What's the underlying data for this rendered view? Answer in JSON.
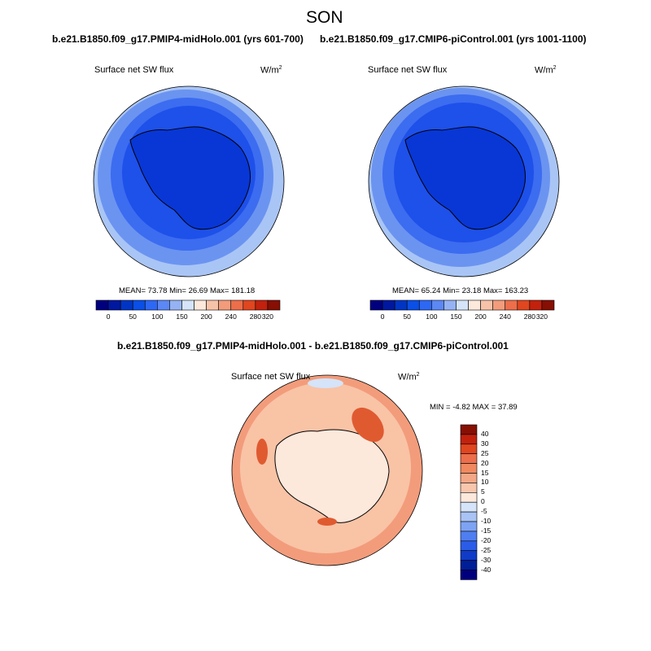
{
  "figure": {
    "season": "SON",
    "variable": "Surface net SW flux",
    "units_base": "W/m",
    "units_exp": "2"
  },
  "panels": [
    {
      "case": "b.e21.B1850.f09_g17.PMIP4-midHolo.001 (yrs 601-700)",
      "mean_label": "MEAN=",
      "mean": "73.78",
      "min_label": "Min=",
      "min": "26.69",
      "max_label": "Max=",
      "max": "181.18"
    },
    {
      "case": "b.e21.B1850.f09_g17.CMIP6-piControl.001 (yrs 1001-1100)",
      "mean_label": "MEAN=",
      "mean": "65.24",
      "min_label": "Min=",
      "min": "23.18",
      "max_label": "Max=",
      "max": "163.23"
    }
  ],
  "difference": {
    "title": "b.e21.B1850.f09_g17.PMIP4-midHolo.001 - b.e21.B1850.f09_g17.CMIP6-piControl.001",
    "minmax": "MIN =  -4.82 MAX =  37.89"
  },
  "colorbar_top": {
    "ticks": [
      "0",
      "50",
      "100",
      "150",
      "200",
      "240",
      "280",
      "320"
    ],
    "colors": [
      "#00007f",
      "#00189f",
      "#0035c4",
      "#0a4fe6",
      "#2d68f5",
      "#5b88f5",
      "#95b3f4",
      "#d5e4f8",
      "#fde8dc",
      "#f7c3a8",
      "#f29c7b",
      "#ec6e4a",
      "#e0461f",
      "#c2210d",
      "#870f03"
    ]
  },
  "colorbar_diff": {
    "ticks": [
      "40",
      "30",
      "25",
      "20",
      "15",
      "10",
      "5",
      "0",
      "-5",
      "-10",
      "-15",
      "-20",
      "-25",
      "-30",
      "-40"
    ],
    "colors": [
      "#870f03",
      "#c2210d",
      "#e0461f",
      "#ec6e4a",
      "#f0895f",
      "#f4a786",
      "#f8c6ad",
      "#fde8dc",
      "#d5e4f8",
      "#a8c3f4",
      "#7ea3f2",
      "#4f7ef0",
      "#2b5ce8",
      "#0f3bc8",
      "#001e98",
      "#00007f"
    ]
  },
  "colors": {
    "ocean_far": "#a9c5f5",
    "ocean_mid": "#6b94f1",
    "ocean_near": "#3c6cf0",
    "ice_zone": "#1e50ea",
    "land": "#0837d6",
    "diff_ocean": "#f9c3a6",
    "diff_land": "#fde8dc",
    "diff_hot": "#e05a30"
  }
}
